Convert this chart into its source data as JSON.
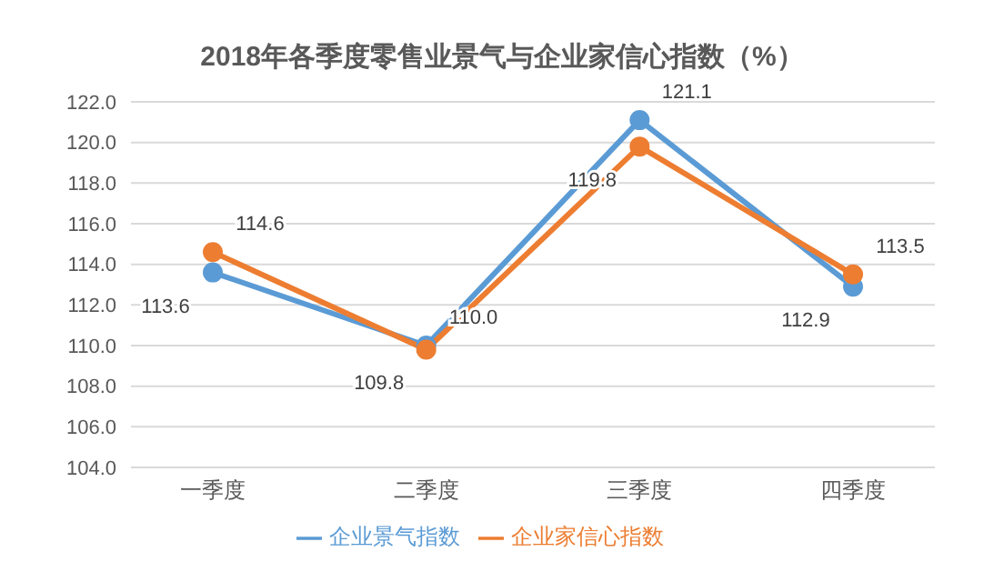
{
  "chart_data": {
    "type": "line",
    "title": "2018年各季度零售业景气与企业家信心指数（%）",
    "categories": [
      "一季度",
      "二季度",
      "三季度",
      "四季度"
    ],
    "series": [
      {
        "name": "企业景气指数",
        "color": "#5b9bd5",
        "values": [
          113.6,
          110.0,
          121.1,
          112.9
        ],
        "value_labels": [
          "113.6",
          "110.0",
          "121.1",
          "112.9"
        ]
      },
      {
        "name": "企业家信心指数",
        "color": "#ed7d31",
        "values": [
          114.6,
          109.8,
          119.8,
          113.5
        ],
        "value_labels": [
          "114.6",
          "109.8",
          "119.8",
          "113.5"
        ]
      }
    ],
    "ylim": [
      104,
      122
    ],
    "yticks": [
      {
        "value": 104,
        "label": "104.0"
      },
      {
        "value": 106,
        "label": "106.0"
      },
      {
        "value": 108,
        "label": "108.0"
      },
      {
        "value": 110,
        "label": "110.0"
      },
      {
        "value": 112,
        "label": "112.0"
      },
      {
        "value": 114,
        "label": "114.0"
      },
      {
        "value": 116,
        "label": "116.0"
      },
      {
        "value": 118,
        "label": "118.0"
      },
      {
        "value": 120,
        "label": "120.0"
      },
      {
        "value": 122,
        "label": "122.0"
      }
    ],
    "grid": "y",
    "legend": "bottom",
    "marker": "circle",
    "line_style": "solid"
  }
}
